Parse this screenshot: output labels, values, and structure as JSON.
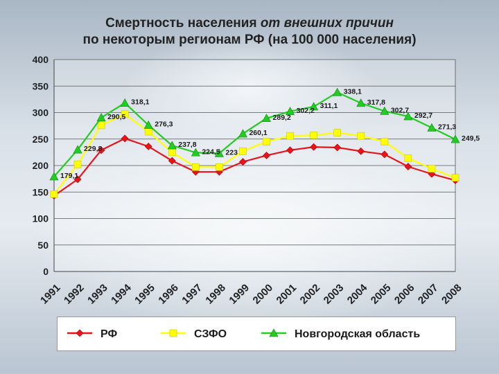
{
  "chart_data": {
    "type": "line",
    "title_line1_normal": "Смертность населения ",
    "title_line1_italic": "от внешних причин",
    "title_line2": "по некоторым регионам РФ (на 100 000 населения)",
    "categories": [
      "1991",
      "1992",
      "1993",
      "1994",
      "1995",
      "1996",
      "1997",
      "1998",
      "1999",
      "2000",
      "2001",
      "2002",
      "2003",
      "2004",
      "2005",
      "2006",
      "2007",
      "2008"
    ],
    "ylim": [
      0,
      400
    ],
    "yticks": [
      "0",
      "50",
      "100",
      "150",
      "200",
      "250",
      "300",
      "350",
      "400"
    ],
    "grid": true,
    "legend_position": "bottom",
    "series": [
      {
        "name": "РФ",
        "color": "#e8141b",
        "marker": "diamond",
        "values": [
          143,
          174,
          229,
          251,
          236,
          209,
          188,
          188,
          207,
          219,
          229,
          235,
          234,
          227,
          221,
          198,
          184,
          172
        ]
      },
      {
        "name": "СЗФО",
        "color": "#ffff00",
        "marker": "square",
        "values": [
          146,
          202,
          276,
          297,
          264,
          225,
          197,
          197,
          227,
          245,
          256,
          257,
          262,
          256,
          245,
          214,
          194,
          177
        ]
      },
      {
        "name": "Новгородская область",
        "color": "#22cc22",
        "marker": "triangle",
        "values": [
          179.1,
          229.8,
          290.5,
          318.1,
          276.3,
          237.8,
          224.5,
          223,
          260.1,
          289.2,
          302.2,
          311.1,
          338.1,
          317.8,
          302.7,
          292.7,
          271.3,
          249.5
        ],
        "labels": [
          "179,1",
          "229,8",
          "290,5",
          "318,1",
          "276,3",
          "237,8",
          "224,5",
          "223",
          "260,1",
          "289,2",
          "302,2",
          "311,1",
          "338,1",
          "317,8",
          "302,7",
          "292,7",
          "271,3",
          "249,5"
        ]
      }
    ]
  }
}
